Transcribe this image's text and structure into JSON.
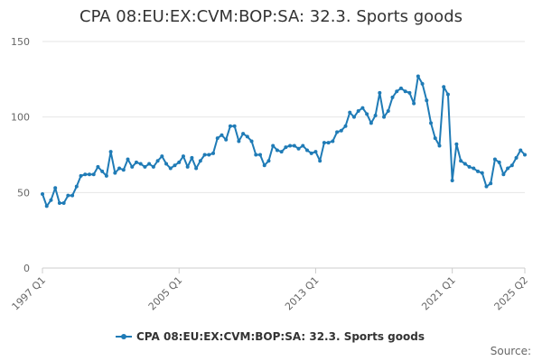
{
  "chart_data": {
    "type": "line",
    "title": "CPA 08:EU:EX:CVM:BOP:SA: 32.3. Sports goods",
    "xlabel": "",
    "ylabel": "",
    "x_tick_labels": [
      "1997 Q1",
      "2005 Q1",
      "2013 Q1",
      "2021 Q1",
      "2025 Q2"
    ],
    "y_ticks": [
      0,
      50,
      100,
      150
    ],
    "ylim": [
      0,
      150
    ],
    "x_start": "1997 Q1",
    "x_end": "2025 Q2",
    "frequency": "quarterly",
    "grid": true,
    "legend_position": "bottom",
    "source_label": "Source:",
    "series": [
      {
        "name": "CPA 08:EU:EX:CVM:BOP:SA: 32.3. Sports goods",
        "color": "#1f7bb6",
        "values": [
          49,
          41,
          45,
          53,
          43,
          43,
          48,
          48,
          54,
          61,
          62,
          62,
          62,
          67,
          64,
          61,
          77,
          63,
          66,
          65,
          72,
          67,
          70,
          69,
          67,
          69,
          67,
          71,
          74,
          69,
          66,
          68,
          70,
          74,
          67,
          73,
          66,
          71,
          75,
          75,
          76,
          86,
          88,
          85,
          94,
          94,
          84,
          89,
          87,
          84,
          75,
          75,
          68,
          71,
          81,
          78,
          77,
          80,
          81,
          81,
          79,
          81,
          78,
          76,
          77,
          71,
          83,
          83,
          84,
          90,
          91,
          94,
          103,
          100,
          104,
          106,
          102,
          96,
          101,
          116,
          100,
          104,
          113,
          117,
          119,
          117,
          116,
          109,
          127,
          122,
          111,
          96,
          86,
          81,
          120,
          115,
          58,
          82,
          71,
          69,
          67,
          66,
          64,
          63,
          54,
          56,
          72,
          70,
          62,
          66,
          68,
          73,
          78,
          75
        ]
      }
    ]
  }
}
